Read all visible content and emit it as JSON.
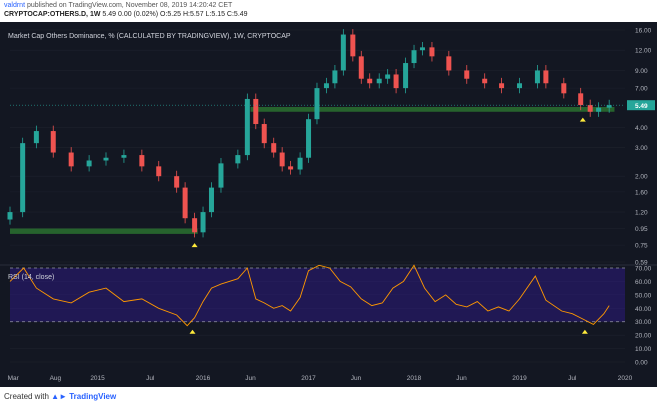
{
  "header": {
    "author": "valdrnt",
    "published_text": "published on TradingView.com, November 08, 2019 14:20:42 CET",
    "symbol": "CRYPTOCAP:OTHERS.D, 1W",
    "ohlc_text": "5.49 0.00 (0.02%) O:5.25 H:5.57 L:5.15 C:5.49"
  },
  "footer": {
    "created_with": "Created with",
    "brand": "TradingView"
  },
  "colors": {
    "background": "#131722",
    "up": "#26a69a",
    "down": "#ef5350",
    "rsi_line": "#ff9800",
    "rsi_band": "#311b92",
    "support_zone": "#2e7d32",
    "marker": "#ffeb3b",
    "last_price_tag": "#26a69a"
  },
  "icons": [
    "triangle-marker-icon",
    "tradingview-logo-icon"
  ],
  "chart_data": [
    {
      "type": "candlestick",
      "title": "Market Cap Others Dominance, % (CALCULATED BY TRADINGVIEW), 1W, CRYPTOCAP",
      "scale": "log",
      "ylim": [
        0.59,
        16.0
      ],
      "y_ticks": [
        "16.00",
        "12.00",
        "9.00",
        "7.00",
        "4.00",
        "3.00",
        "2.00",
        "1.60",
        "1.20",
        "0.95",
        "0.75",
        "0.59"
      ],
      "last_price_label": "5.49",
      "x_ticks": [
        "Mar",
        "Aug",
        "2015",
        "Jul",
        "2016",
        "Jun",
        "2017",
        "Jun",
        "2018",
        "Jun",
        "2019",
        "Jul",
        "2020"
      ],
      "x": [
        2014.17,
        2014.29,
        2014.42,
        2014.58,
        2014.75,
        2014.92,
        2015.08,
        2015.25,
        2015.42,
        2015.58,
        2015.75,
        2015.83,
        2015.92,
        2016.0,
        2016.08,
        2016.17,
        2016.33,
        2016.42,
        2016.5,
        2016.58,
        2016.67,
        2016.75,
        2016.83,
        2016.92,
        2017.0,
        2017.08,
        2017.17,
        2017.25,
        2017.33,
        2017.42,
        2017.5,
        2017.58,
        2017.67,
        2017.75,
        2017.83,
        2017.92,
        2018.0,
        2018.08,
        2018.17,
        2018.33,
        2018.5,
        2018.67,
        2018.83,
        2019.0,
        2019.17,
        2019.25,
        2019.42,
        2019.58,
        2019.67,
        2019.75,
        2019.85
      ],
      "close": [
        1.2,
        3.2,
        3.8,
        2.8,
        2.3,
        2.5,
        2.6,
        2.7,
        2.3,
        2.0,
        1.7,
        1.1,
        0.9,
        1.2,
        1.7,
        2.4,
        2.7,
        6.0,
        4.2,
        3.2,
        2.8,
        2.3,
        2.2,
        2.6,
        4.5,
        7.0,
        7.5,
        9.0,
        15.0,
        11.0,
        8.0,
        7.5,
        8.0,
        8.5,
        7.0,
        10.0,
        12.0,
        12.5,
        11.0,
        9.0,
        8.0,
        7.5,
        7.0,
        7.5,
        9.0,
        7.5,
        6.5,
        5.5,
        5.0,
        5.3,
        5.49
      ],
      "support_zones": [
        [
          0.88,
          0.95
        ],
        [
          5.0,
          5.35
        ]
      ],
      "markers_x": [
        2015.92,
        2019.6
      ]
    },
    {
      "type": "line",
      "title": "RSI (14, close)",
      "ylim": [
        0,
        70
      ],
      "y_ticks": [
        "70.00",
        "60.00",
        "50.00",
        "40.00",
        "30.00",
        "20.00",
        "10.00",
        "0.00"
      ],
      "band": [
        30,
        70
      ],
      "x": [
        2014.17,
        2014.3,
        2014.42,
        2014.58,
        2014.75,
        2014.92,
        2015.08,
        2015.25,
        2015.42,
        2015.58,
        2015.75,
        2015.85,
        2015.92,
        2016.0,
        2016.08,
        2016.17,
        2016.33,
        2016.42,
        2016.5,
        2016.58,
        2016.67,
        2016.75,
        2016.83,
        2016.92,
        2017.0,
        2017.1,
        2017.2,
        2017.3,
        2017.4,
        2017.5,
        2017.6,
        2017.7,
        2017.8,
        2017.9,
        2018.0,
        2018.1,
        2018.2,
        2018.3,
        2018.4,
        2018.5,
        2018.6,
        2018.7,
        2018.8,
        2018.9,
        2019.0,
        2019.15,
        2019.25,
        2019.4,
        2019.5,
        2019.6,
        2019.7,
        2019.8,
        2019.85
      ],
      "values": [
        60,
        70,
        55,
        47,
        44,
        52,
        55,
        45,
        47,
        40,
        35,
        27,
        33,
        45,
        55,
        58,
        62,
        70,
        47,
        44,
        40,
        42,
        38,
        48,
        68,
        73,
        70,
        60,
        56,
        47,
        42,
        44,
        55,
        60,
        72,
        55,
        45,
        50,
        43,
        41,
        45,
        38,
        41,
        38,
        47,
        64,
        46,
        38,
        36,
        32,
        28,
        36,
        42
      ],
      "markers_x": [
        2015.9,
        2019.62
      ]
    }
  ]
}
